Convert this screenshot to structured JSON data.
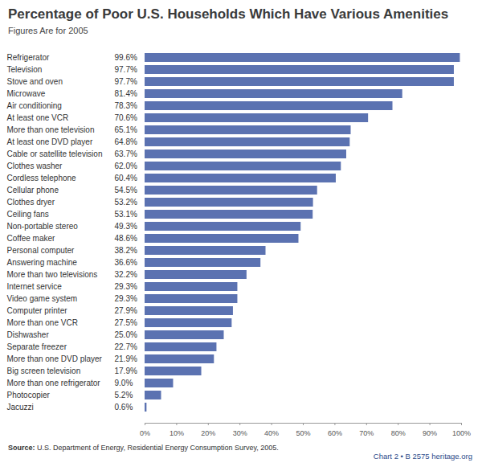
{
  "chart_data": {
    "type": "bar",
    "orientation": "horizontal",
    "title": "Percentage of Poor U.S. Households Which Have Various Amenities",
    "subtitle": "Figures Are for 2005",
    "source_label": "Source:",
    "source": "U.S. Department of Energy, Residential Energy Consumption Survey, 2005.",
    "chart_id": "Chart 2 • B 2575",
    "site": "heritage.org",
    "categories": [
      "Refrigerator",
      "Television",
      "Stove and oven",
      "Microwave",
      "Air conditioning",
      "At least one VCR",
      "More than one television",
      "At least one DVD player",
      "Cable or satellite television",
      "Clothes washer",
      "Cordless telephone",
      "Cellular phone",
      "Clothes dryer",
      "Ceiling fans",
      "Non-portable stereo",
      "Coffee maker",
      "Personal computer",
      "Answering machine",
      "More than two televisions",
      "Internet service",
      "Video game system",
      "Computer printer",
      "More than one VCR",
      "Dishwasher",
      "Separate freezer",
      "More than one DVD player",
      "Big screen television",
      "More than one refrigerator",
      "Photocopier",
      "Jacuzzi"
    ],
    "values": [
      99.6,
      97.7,
      97.7,
      81.4,
      78.3,
      70.6,
      65.1,
      64.8,
      63.7,
      62.0,
      60.4,
      54.5,
      53.2,
      53.1,
      49.3,
      48.6,
      38.2,
      36.6,
      32.2,
      29.3,
      29.3,
      27.9,
      27.5,
      25.0,
      22.7,
      21.9,
      17.9,
      9.0,
      5.2,
      0.6
    ],
    "value_labels": [
      "99.6%",
      "97.7%",
      "97.7%",
      "81.4%",
      "78.3%",
      "70.6%",
      "65.1%",
      "64.8%",
      "63.7%",
      "62.0%",
      "60.4%",
      "54.5%",
      "53.2%",
      "53.1%",
      "49.3%",
      "48.6%",
      "38.2%",
      "36.6%",
      "32.2%",
      "29.3%",
      "29.3%",
      "27.9%",
      "27.5%",
      "25.0%",
      "22.7%",
      "21.9%",
      "17.9%",
      "9.0%",
      "5.2%",
      "0.6%"
    ],
    "data_labels": true,
    "color": "#5b72b1",
    "xlim": [
      0,
      100
    ],
    "xticks": [
      {
        "value": 0,
        "label": "0%"
      },
      {
        "value": 10,
        "label": "10%"
      },
      {
        "value": 20,
        "label": "20%"
      },
      {
        "value": 30,
        "label": "30%"
      },
      {
        "value": 40,
        "label": "40%"
      },
      {
        "value": 50,
        "label": "50%"
      },
      {
        "value": 60,
        "label": "60%"
      },
      {
        "value": 70,
        "label": "70%"
      },
      {
        "value": 80,
        "label": "80%"
      },
      {
        "value": 90,
        "label": "90%"
      },
      {
        "value": 100,
        "label": "100%"
      }
    ],
    "grid": false
  }
}
